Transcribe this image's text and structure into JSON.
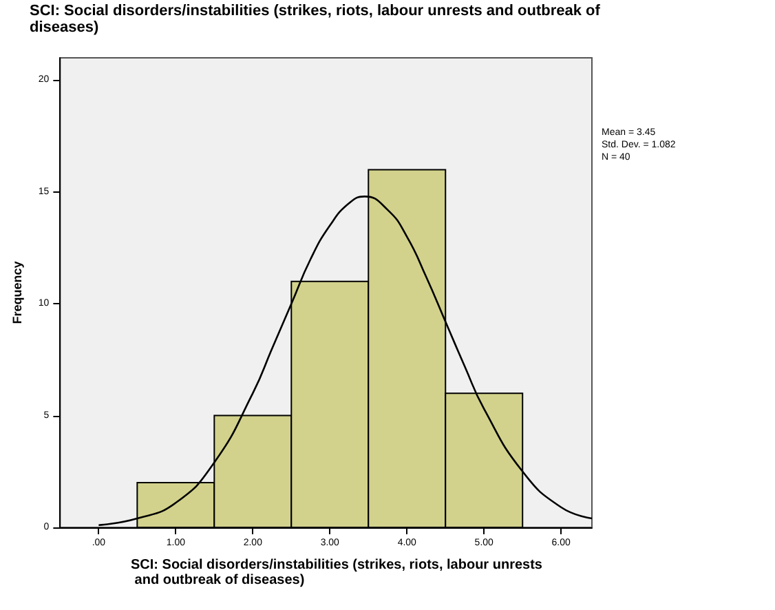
{
  "chart_data": {
    "type": "histogram",
    "title": "SCI: Social disorders/instabilities (strikes, riots, labour unrests and outbreak of diseases)",
    "xlabel": "SCI: Social disorders/instabilities (strikes, riots, labour unrests and outbreak of diseases)",
    "ylabel": "Frequency",
    "bins": [
      0.5,
      1.5,
      2.5,
      3.5,
      4.5,
      5.5
    ],
    "values": [
      2,
      5,
      11,
      16,
      6
    ],
    "color": "#d2d28c",
    "series": [
      {
        "type": "line",
        "color": "#000000",
        "x": [
          0,
          0.5,
          1,
          1.5,
          2,
          2.25,
          2.5,
          2.75,
          3,
          3.25,
          3.45,
          3.75,
          4,
          4.25,
          4.5,
          4.75,
          5,
          5.5,
          6,
          6.4
        ],
        "values": [
          0.1,
          0.4,
          1.1,
          2.9,
          6.0,
          8.0,
          10.0,
          12.0,
          13.5,
          14.5,
          14.8,
          14.2,
          13.0,
          11.2,
          9.2,
          7.2,
          5.3,
          2.5,
          0.9,
          0.4
        ]
      }
    ],
    "marker": "none",
    "line_style": "solid",
    "xlim": [
      -0.5,
      6.4
    ],
    "xticks": [
      {
        "value": 0,
        "label": ".00"
      },
      {
        "value": 1,
        "label": "1.00"
      },
      {
        "value": 2,
        "label": "2.00"
      },
      {
        "value": 3,
        "label": "3.00"
      },
      {
        "value": 4,
        "label": "4.00"
      },
      {
        "value": 5,
        "label": "5.00"
      },
      {
        "value": 6,
        "label": "6.00"
      }
    ],
    "ylim": [
      0,
      21
    ],
    "yticks": [
      0,
      5,
      10,
      15,
      20
    ],
    "grid": false,
    "annotations": [
      "Mean = 3.45",
      "Std. Dev. = 1.082",
      "N = 40"
    ]
  }
}
